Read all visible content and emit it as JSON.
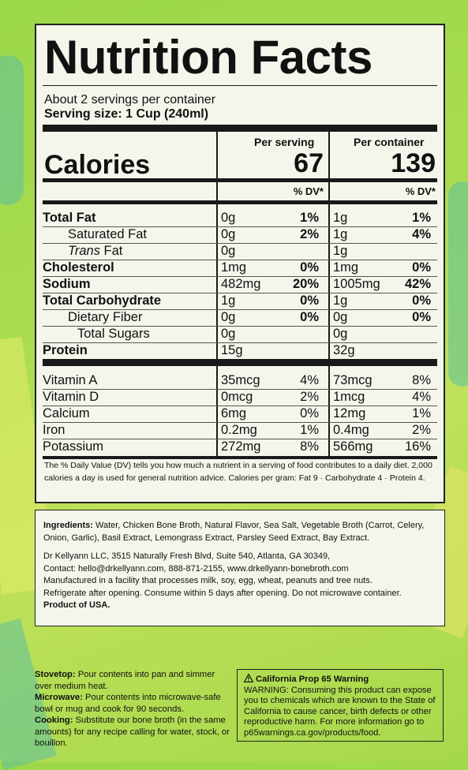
{
  "title": "Nutrition Facts",
  "servings_per_container": "About 2 servings per container",
  "serving_size": "Serving size: 1 Cup (240ml)",
  "columns": {
    "per_serving": "Per serving",
    "per_container": "Per container"
  },
  "calories": {
    "label": "Calories",
    "per_serving": "67",
    "per_container": "139"
  },
  "dv_header": "% DV*",
  "nutrients": [
    {
      "name": "Total Fat",
      "amt1": "0g",
      "dv1": "1%",
      "amt2": "1g",
      "dv2": "1%"
    },
    {
      "name": "Saturated Fat",
      "amt1": "0g",
      "dv1": "2%",
      "amt2": "1g",
      "dv2": "4%"
    },
    {
      "name_italic": "Trans",
      "name_rest": " Fat",
      "amt1": "0g",
      "dv1": "",
      "amt2": "1g",
      "dv2": ""
    },
    {
      "name": "Cholesterol",
      "amt1": "1mg",
      "dv1": "0%",
      "amt2": "1mg",
      "dv2": "0%"
    },
    {
      "name": "Sodium",
      "amt1": "482mg",
      "dv1": "20%",
      "amt2": "1005mg",
      "dv2": "42%"
    },
    {
      "name": "Total Carbohydrate",
      "amt1": "1g",
      "dv1": "0%",
      "amt2": "1g",
      "dv2": "0%"
    },
    {
      "name": "Dietary Fiber",
      "amt1": "0g",
      "dv1": "0%",
      "amt2": "0g",
      "dv2": "0%"
    },
    {
      "name": "Total Sugars",
      "amt1": "0g",
      "dv1": "",
      "amt2": "0g",
      "dv2": ""
    },
    {
      "name": "Protein",
      "amt1": "15g",
      "dv1": "",
      "amt2": "32g",
      "dv2": ""
    }
  ],
  "vitamins": [
    {
      "name": "Vitamin A",
      "amt1": "35mcg",
      "dv1": "4%",
      "amt2": "73mcg",
      "dv2": "8%"
    },
    {
      "name": "Vitamin D",
      "amt1": "0mcg",
      "dv1": "2%",
      "amt2": "1mcg",
      "dv2": "4%"
    },
    {
      "name": "Calcium",
      "amt1": "6mg",
      "dv1": "0%",
      "amt2": "12mg",
      "dv2": "1%"
    },
    {
      "name": "Iron",
      "amt1": "0.2mg",
      "dv1": "1%",
      "amt2": "0.4mg",
      "dv2": "2%"
    },
    {
      "name": "Potassium",
      "amt1": "272mg",
      "dv1": "8%",
      "amt2": "566mg",
      "dv2": "16%"
    }
  ],
  "footnote": "The % Daily Value (DV) tells you how much a nutrient in a serving of food contributes to a daily diet. 2,000 calories a day is used for general nutrition advice. Calories per gram: Fat 9 · Carbohydrate 4 · Protein 4.",
  "ingredients_label": "Ingredients:",
  "ingredients": " Water,  Chicken Bone Broth, Natural Flavor, Sea Salt, Vegetable Broth (Carrot, Celery, Onion, Garlic), Basil Extract, Lemongrass Extract, Parsley Seed Extract, Bay Extract.",
  "company": "Dr Kellyann LLC, 3515 Naturally Fresh Blvd, Suite 540, Atlanta, GA 30349,",
  "contact": "Contact: hello@drkellyann.com, 888-871-2155, www.drkellyann-bonebroth.com",
  "allergen": "Manufactured in a facility that processes milk, soy, egg, wheat, peanuts and tree nuts.",
  "storage": "Refrigerate after opening. Consume within 5 days after opening. Do not microwave container.",
  "origin": "Product of USA.",
  "directions": {
    "stovetop_label": "Stovetop:",
    "stovetop": " Pour contents into pan and simmer over medium heat.",
    "microwave_label": "Microwave:",
    "microwave": " Pour contents into microwave-safe bowl or mug and cook for 90 seconds.",
    "cooking_label": "Cooking:",
    "cooking": " Substitute our bone broth (in the same amounts) for any recipe calling for water, stock, or bouillon."
  },
  "prop65": {
    "title": "California Prop 65 Warning",
    "text": "WARNING: Consuming this product can expose you to chemicals which are known to the State of California to cause cancer, birth defects or other reproductive harm. For more information go to p65warnings.ca.gov/products/food."
  }
}
